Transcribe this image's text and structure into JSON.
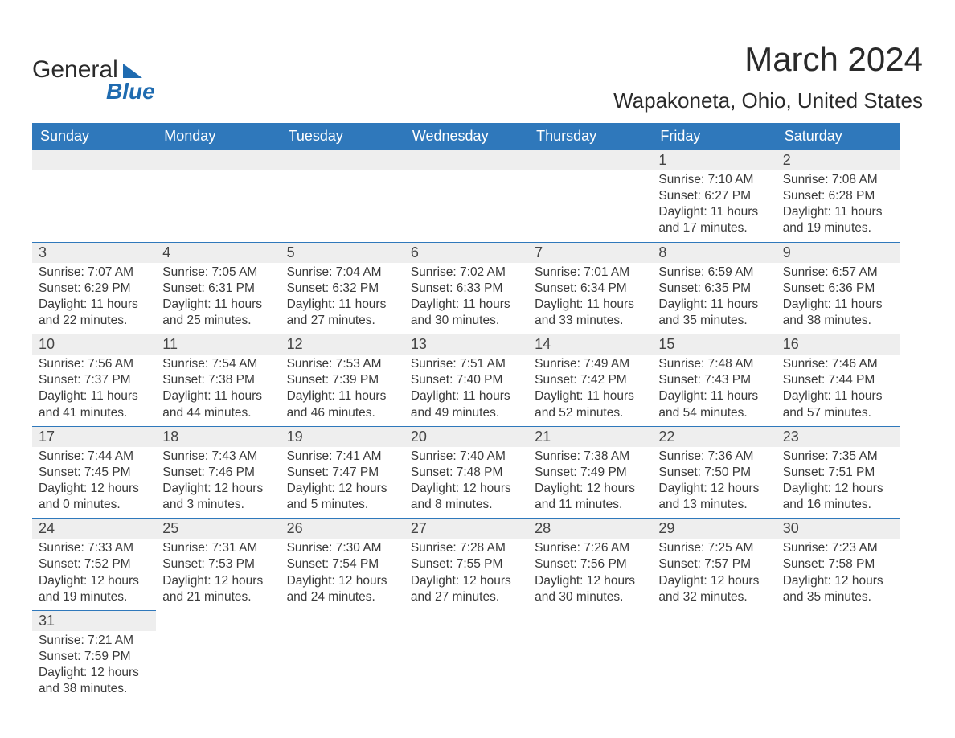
{
  "brand": {
    "line1": "General",
    "line2": "Blue"
  },
  "title": {
    "month": "March 2024",
    "location": "Wapakoneta, Ohio, United States"
  },
  "columns": [
    "Sunday",
    "Monday",
    "Tuesday",
    "Wednesday",
    "Thursday",
    "Friday",
    "Saturday"
  ],
  "colors": {
    "header_bg": "#2f78bb",
    "header_text": "#ffffff",
    "daynum_bg": "#eeeeee",
    "row_border": "#2f78bb",
    "text": "#3a3a3a",
    "brand_blue": "#1f6bb0"
  },
  "typography": {
    "title_fontsize": 42,
    "location_fontsize": 26,
    "header_fontsize": 18,
    "daynum_fontsize": 18,
    "cell_fontsize": 15.5
  },
  "weeks": [
    [
      null,
      null,
      null,
      null,
      null,
      {
        "d": "1",
        "sr": "7:10 AM",
        "ss": "6:27 PM",
        "dl": "11 hours and 17 minutes."
      },
      {
        "d": "2",
        "sr": "7:08 AM",
        "ss": "6:28 PM",
        "dl": "11 hours and 19 minutes."
      }
    ],
    [
      {
        "d": "3",
        "sr": "7:07 AM",
        "ss": "6:29 PM",
        "dl": "11 hours and 22 minutes."
      },
      {
        "d": "4",
        "sr": "7:05 AM",
        "ss": "6:31 PM",
        "dl": "11 hours and 25 minutes."
      },
      {
        "d": "5",
        "sr": "7:04 AM",
        "ss": "6:32 PM",
        "dl": "11 hours and 27 minutes."
      },
      {
        "d": "6",
        "sr": "7:02 AM",
        "ss": "6:33 PM",
        "dl": "11 hours and 30 minutes."
      },
      {
        "d": "7",
        "sr": "7:01 AM",
        "ss": "6:34 PM",
        "dl": "11 hours and 33 minutes."
      },
      {
        "d": "8",
        "sr": "6:59 AM",
        "ss": "6:35 PM",
        "dl": "11 hours and 35 minutes."
      },
      {
        "d": "9",
        "sr": "6:57 AM",
        "ss": "6:36 PM",
        "dl": "11 hours and 38 minutes."
      }
    ],
    [
      {
        "d": "10",
        "sr": "7:56 AM",
        "ss": "7:37 PM",
        "dl": "11 hours and 41 minutes."
      },
      {
        "d": "11",
        "sr": "7:54 AM",
        "ss": "7:38 PM",
        "dl": "11 hours and 44 minutes."
      },
      {
        "d": "12",
        "sr": "7:53 AM",
        "ss": "7:39 PM",
        "dl": "11 hours and 46 minutes."
      },
      {
        "d": "13",
        "sr": "7:51 AM",
        "ss": "7:40 PM",
        "dl": "11 hours and 49 minutes."
      },
      {
        "d": "14",
        "sr": "7:49 AM",
        "ss": "7:42 PM",
        "dl": "11 hours and 52 minutes."
      },
      {
        "d": "15",
        "sr": "7:48 AM",
        "ss": "7:43 PM",
        "dl": "11 hours and 54 minutes."
      },
      {
        "d": "16",
        "sr": "7:46 AM",
        "ss": "7:44 PM",
        "dl": "11 hours and 57 minutes."
      }
    ],
    [
      {
        "d": "17",
        "sr": "7:44 AM",
        "ss": "7:45 PM",
        "dl": "12 hours and 0 minutes."
      },
      {
        "d": "18",
        "sr": "7:43 AM",
        "ss": "7:46 PM",
        "dl": "12 hours and 3 minutes."
      },
      {
        "d": "19",
        "sr": "7:41 AM",
        "ss": "7:47 PM",
        "dl": "12 hours and 5 minutes."
      },
      {
        "d": "20",
        "sr": "7:40 AM",
        "ss": "7:48 PM",
        "dl": "12 hours and 8 minutes."
      },
      {
        "d": "21",
        "sr": "7:38 AM",
        "ss": "7:49 PM",
        "dl": "12 hours and 11 minutes."
      },
      {
        "d": "22",
        "sr": "7:36 AM",
        "ss": "7:50 PM",
        "dl": "12 hours and 13 minutes."
      },
      {
        "d": "23",
        "sr": "7:35 AM",
        "ss": "7:51 PM",
        "dl": "12 hours and 16 minutes."
      }
    ],
    [
      {
        "d": "24",
        "sr": "7:33 AM",
        "ss": "7:52 PM",
        "dl": "12 hours and 19 minutes."
      },
      {
        "d": "25",
        "sr": "7:31 AM",
        "ss": "7:53 PM",
        "dl": "12 hours and 21 minutes."
      },
      {
        "d": "26",
        "sr": "7:30 AM",
        "ss": "7:54 PM",
        "dl": "12 hours and 24 minutes."
      },
      {
        "d": "27",
        "sr": "7:28 AM",
        "ss": "7:55 PM",
        "dl": "12 hours and 27 minutes."
      },
      {
        "d": "28",
        "sr": "7:26 AM",
        "ss": "7:56 PM",
        "dl": "12 hours and 30 minutes."
      },
      {
        "d": "29",
        "sr": "7:25 AM",
        "ss": "7:57 PM",
        "dl": "12 hours and 32 minutes."
      },
      {
        "d": "30",
        "sr": "7:23 AM",
        "ss": "7:58 PM",
        "dl": "12 hours and 35 minutes."
      }
    ],
    [
      {
        "d": "31",
        "sr": "7:21 AM",
        "ss": "7:59 PM",
        "dl": "12 hours and 38 minutes."
      },
      null,
      null,
      null,
      null,
      null,
      null
    ]
  ],
  "labels": {
    "sunrise": "Sunrise: ",
    "sunset": "Sunset: ",
    "daylight": "Daylight: "
  }
}
